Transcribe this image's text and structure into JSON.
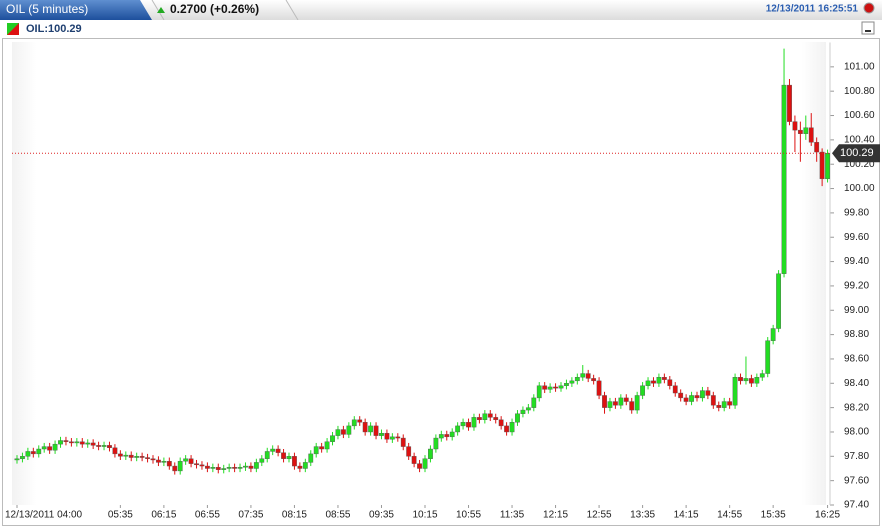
{
  "header": {
    "title": "OIL (5 minutes)",
    "change": "0.2700 (+0.26%)",
    "timestamp": "12/13/2011 16:25:51",
    "symbol": "OIL:100.29"
  },
  "chart_data": {
    "type": "candlestick",
    "categories": [
      "12/13/2011 04:00",
      null,
      null,
      null,
      null,
      null,
      null,
      null,
      null,
      null,
      null,
      null,
      null,
      null,
      null,
      null,
      null,
      null,
      null,
      "05:35",
      null,
      null,
      null,
      null,
      null,
      null,
      null,
      "06:15",
      null,
      null,
      null,
      null,
      null,
      null,
      null,
      "06:55",
      null,
      null,
      null,
      null,
      null,
      null,
      null,
      "07:35",
      null,
      null,
      null,
      null,
      null,
      null,
      null,
      "08:15",
      null,
      null,
      null,
      null,
      null,
      null,
      null,
      "08:55",
      null,
      null,
      null,
      null,
      null,
      null,
      null,
      "09:35",
      null,
      null,
      null,
      null,
      null,
      null,
      null,
      "10:15",
      null,
      null,
      null,
      null,
      null,
      null,
      null,
      "10:55",
      null,
      null,
      null,
      null,
      null,
      null,
      null,
      "11:35",
      null,
      null,
      null,
      null,
      null,
      null,
      null,
      "12:15",
      null,
      null,
      null,
      null,
      null,
      null,
      null,
      "12:55",
      null,
      null,
      null,
      null,
      null,
      null,
      null,
      "13:35",
      null,
      null,
      null,
      null,
      null,
      null,
      null,
      "14:15",
      null,
      null,
      null,
      null,
      null,
      null,
      null,
      "14:55",
      null,
      null,
      null,
      null,
      null,
      null,
      null,
      "15:35",
      null,
      null,
      null,
      null,
      null,
      null,
      null,
      null,
      null,
      "16:25"
    ],
    "open": [
      97.77,
      97.78,
      97.8,
      97.84,
      97.82,
      97.86,
      97.88,
      97.85,
      97.9,
      97.93,
      97.92,
      97.91,
      97.92,
      97.9,
      97.91,
      97.89,
      97.88,
      97.89,
      97.87,
      97.82,
      97.8,
      97.81,
      97.79,
      97.8,
      97.79,
      97.78,
      97.77,
      97.75,
      97.76,
      97.72,
      97.68,
      97.76,
      97.78,
      97.74,
      97.73,
      97.72,
      97.7,
      97.71,
      97.69,
      97.7,
      97.71,
      97.7,
      97.71,
      97.72,
      97.7,
      97.75,
      97.78,
      97.84,
      97.86,
      97.83,
      97.78,
      97.8,
      97.72,
      97.7,
      97.75,
      97.82,
      97.88,
      97.86,
      97.92,
      97.97,
      98.02,
      97.98,
      98.05,
      98.1,
      98.08,
      98.0,
      98.05,
      97.97,
      97.99,
      97.94,
      97.96,
      97.95,
      97.88,
      97.8,
      97.74,
      97.7,
      97.78,
      97.86,
      97.95,
      97.98,
      97.96,
      98.0,
      98.05,
      98.08,
      98.04,
      98.12,
      98.1,
      98.15,
      98.12,
      98.1,
      98.05,
      98.0,
      98.08,
      98.15,
      98.18,
      98.2,
      98.28,
      98.38,
      98.35,
      98.37,
      98.36,
      98.38,
      98.4,
      98.42,
      98.45,
      98.48,
      98.44,
      98.42,
      98.3,
      98.2,
      98.25,
      98.22,
      98.28,
      98.25,
      98.18,
      98.3,
      98.38,
      98.42,
      98.4,
      98.45,
      98.43,
      98.38,
      98.32,
      98.28,
      98.25,
      98.3,
      98.28,
      98.34,
      98.3,
      98.22,
      98.2,
      98.25,
      98.22,
      98.45,
      98.42,
      98.44,
      98.4,
      98.45,
      98.48,
      98.75,
      98.85,
      99.3,
      100.85,
      100.55,
      100.48,
      100.45,
      100.5,
      100.38,
      100.3,
      100.08
    ],
    "high": [
      97.81,
      97.83,
      97.87,
      97.87,
      97.89,
      97.91,
      97.91,
      97.93,
      97.96,
      97.96,
      97.95,
      97.95,
      97.95,
      97.94,
      97.94,
      97.92,
      97.92,
      97.92,
      97.9,
      97.85,
      97.84,
      97.84,
      97.83,
      97.83,
      97.82,
      97.81,
      97.8,
      97.79,
      97.79,
      97.75,
      97.79,
      97.81,
      97.81,
      97.77,
      97.76,
      97.75,
      97.74,
      97.74,
      97.73,
      97.74,
      97.74,
      97.74,
      97.75,
      97.75,
      97.78,
      97.81,
      97.87,
      97.89,
      97.89,
      97.86,
      97.83,
      97.83,
      97.75,
      97.78,
      97.85,
      97.91,
      97.91,
      97.95,
      98.0,
      98.05,
      98.05,
      98.08,
      98.13,
      98.13,
      98.11,
      98.08,
      98.08,
      98.02,
      98.02,
      97.99,
      97.99,
      97.98,
      97.91,
      97.83,
      97.77,
      97.81,
      97.89,
      97.98,
      98.01,
      98.01,
      98.03,
      98.08,
      98.11,
      98.11,
      98.15,
      98.15,
      98.18,
      98.18,
      98.15,
      98.13,
      98.08,
      98.11,
      98.18,
      98.21,
      98.23,
      98.31,
      98.41,
      98.41,
      98.4,
      98.4,
      98.41,
      98.43,
      98.45,
      98.48,
      98.55,
      98.51,
      98.47,
      98.45,
      98.33,
      98.28,
      98.28,
      98.31,
      98.31,
      98.28,
      98.33,
      98.41,
      98.45,
      98.45,
      98.48,
      98.48,
      98.46,
      98.41,
      98.35,
      98.31,
      98.33,
      98.33,
      98.37,
      98.37,
      98.33,
      98.25,
      98.28,
      98.28,
      98.48,
      98.48,
      98.62,
      98.47,
      98.48,
      98.51,
      98.78,
      98.88,
      99.33,
      101.15,
      100.9,
      100.6,
      100.55,
      100.6,
      100.62,
      100.42,
      100.33,
      100.32
    ],
    "low": [
      97.74,
      97.75,
      97.77,
      97.79,
      97.79,
      97.83,
      97.82,
      97.82,
      97.87,
      97.89,
      97.88,
      97.88,
      97.87,
      97.87,
      97.86,
      97.85,
      97.85,
      97.84,
      97.79,
      97.77,
      97.77,
      97.76,
      97.76,
      97.76,
      97.75,
      97.74,
      97.72,
      97.72,
      97.69,
      97.65,
      97.65,
      97.73,
      97.71,
      97.7,
      97.69,
      97.67,
      97.67,
      97.66,
      97.66,
      97.67,
      97.67,
      97.67,
      97.68,
      97.67,
      97.67,
      97.72,
      97.75,
      97.81,
      97.8,
      97.75,
      97.75,
      97.69,
      97.67,
      97.67,
      97.72,
      97.79,
      97.83,
      97.83,
      97.89,
      97.94,
      97.95,
      97.95,
      98.02,
      98.05,
      97.97,
      97.97,
      97.94,
      97.94,
      97.91,
      97.91,
      97.92,
      97.85,
      97.77,
      97.71,
      97.67,
      97.67,
      97.75,
      97.83,
      97.92,
      97.93,
      97.93,
      97.97,
      98.02,
      98.01,
      98.01,
      98.07,
      98.07,
      98.09,
      98.07,
      98.02,
      97.97,
      97.97,
      98.05,
      98.12,
      98.15,
      98.17,
      98.25,
      98.32,
      98.32,
      98.33,
      98.33,
      98.35,
      98.37,
      98.39,
      98.42,
      98.41,
      98.39,
      98.27,
      98.15,
      98.17,
      98.19,
      98.19,
      98.22,
      98.15,
      98.15,
      98.27,
      98.35,
      98.37,
      98.37,
      98.4,
      98.35,
      98.29,
      98.25,
      98.22,
      98.22,
      98.25,
      98.25,
      98.27,
      98.19,
      98.17,
      98.17,
      98.19,
      98.19,
      98.39,
      98.39,
      98.37,
      98.37,
      98.42,
      98.45,
      98.72,
      98.82,
      99.27,
      100.52,
      100.3,
      100.22,
      100.4,
      100.35,
      100.22,
      100.02,
      100.05
    ],
    "close": [
      97.78,
      97.8,
      97.84,
      97.82,
      97.86,
      97.88,
      97.85,
      97.9,
      97.93,
      97.92,
      97.91,
      97.92,
      97.9,
      97.91,
      97.89,
      97.88,
      97.89,
      97.87,
      97.82,
      97.8,
      97.81,
      97.79,
      97.8,
      97.79,
      97.78,
      97.77,
      97.75,
      97.76,
      97.72,
      97.68,
      97.76,
      97.78,
      97.74,
      97.73,
      97.72,
      97.7,
      97.71,
      97.69,
      97.7,
      97.71,
      97.7,
      97.71,
      97.72,
      97.7,
      97.75,
      97.78,
      97.84,
      97.86,
      97.83,
      97.78,
      97.8,
      97.72,
      97.7,
      97.75,
      97.82,
      97.88,
      97.86,
      97.92,
      97.97,
      98.02,
      97.98,
      98.05,
      98.1,
      98.08,
      98.0,
      98.05,
      97.97,
      97.99,
      97.94,
      97.96,
      97.95,
      97.88,
      97.8,
      97.74,
      97.7,
      97.78,
      97.86,
      97.95,
      97.98,
      97.96,
      98.0,
      98.05,
      98.08,
      98.04,
      98.12,
      98.1,
      98.15,
      98.12,
      98.1,
      98.05,
      98.0,
      98.08,
      98.15,
      98.18,
      98.2,
      98.28,
      98.38,
      98.35,
      98.37,
      98.36,
      98.38,
      98.4,
      98.42,
      98.45,
      98.48,
      98.44,
      98.42,
      98.3,
      98.2,
      98.25,
      98.22,
      98.28,
      98.25,
      98.18,
      98.3,
      98.38,
      98.42,
      98.4,
      98.45,
      98.43,
      98.38,
      98.32,
      98.28,
      98.25,
      98.3,
      98.28,
      98.34,
      98.3,
      98.22,
      98.2,
      98.25,
      98.22,
      98.45,
      98.42,
      98.44,
      98.4,
      98.45,
      98.48,
      98.75,
      98.85,
      99.3,
      100.85,
      100.55,
      100.48,
      100.45,
      100.5,
      100.38,
      100.3,
      100.08,
      100.29
    ],
    "up_color": "#22dd22",
    "down_color": "#dd1111",
    "current_price": 100.29,
    "current_price_color": "#dd2222",
    "ylim": [
      97.4,
      101.2
    ],
    "yticks": [
      {
        "value": 97.4,
        "label": "97.40"
      },
      {
        "value": 97.6,
        "label": "97.60"
      },
      {
        "value": 97.8,
        "label": "97.80"
      },
      {
        "value": 98,
        "label": "98.00"
      },
      {
        "value": 98.2,
        "label": "98.20"
      },
      {
        "value": 98.4,
        "label": "98.40"
      },
      {
        "value": 98.6,
        "label": "98.60"
      },
      {
        "value": 98.8,
        "label": "98.80"
      },
      {
        "value": 99,
        "label": "99.00"
      },
      {
        "value": 99.2,
        "label": "99.20"
      },
      {
        "value": 99.4,
        "label": "99.40"
      },
      {
        "value": 99.6,
        "label": "99.60"
      },
      {
        "value": 99.8,
        "label": "99.80"
      },
      {
        "value": 100,
        "label": "100.00"
      },
      {
        "value": 100.2,
        "label": "100.20"
      },
      {
        "value": 100.4,
        "label": "100.40"
      },
      {
        "value": 100.6,
        "label": "100.60"
      },
      {
        "value": 100.8,
        "label": "100.80"
      },
      {
        "value": 101,
        "label": "101.00"
      }
    ]
  }
}
